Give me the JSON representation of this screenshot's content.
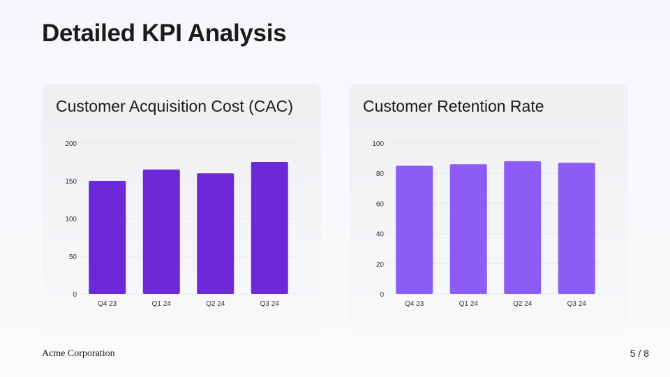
{
  "title": "Detailed KPI Analysis",
  "footer": {
    "company": "Acme Corporation",
    "page": "5 / 8"
  },
  "chart_data": [
    {
      "type": "bar",
      "title": "Customer Acquisition Cost (CAC)",
      "categories": [
        "Q4 23",
        "Q1 24",
        "Q2 24",
        "Q3 24"
      ],
      "values": [
        150,
        165,
        160,
        175
      ],
      "ylim": [
        0,
        200
      ],
      "yticks": [
        0,
        50,
        100,
        150,
        200
      ],
      "grid": true,
      "color": "#6d28d9"
    },
    {
      "type": "bar",
      "title": "Customer Retention Rate",
      "categories": [
        "Q4 23",
        "Q1 24",
        "Q2 24",
        "Q3 24"
      ],
      "values": [
        85,
        86,
        88,
        87
      ],
      "ylim": [
        0,
        100
      ],
      "yticks": [
        0,
        20,
        40,
        60,
        80,
        100
      ],
      "grid": true,
      "color": "#8b5cf6"
    }
  ]
}
